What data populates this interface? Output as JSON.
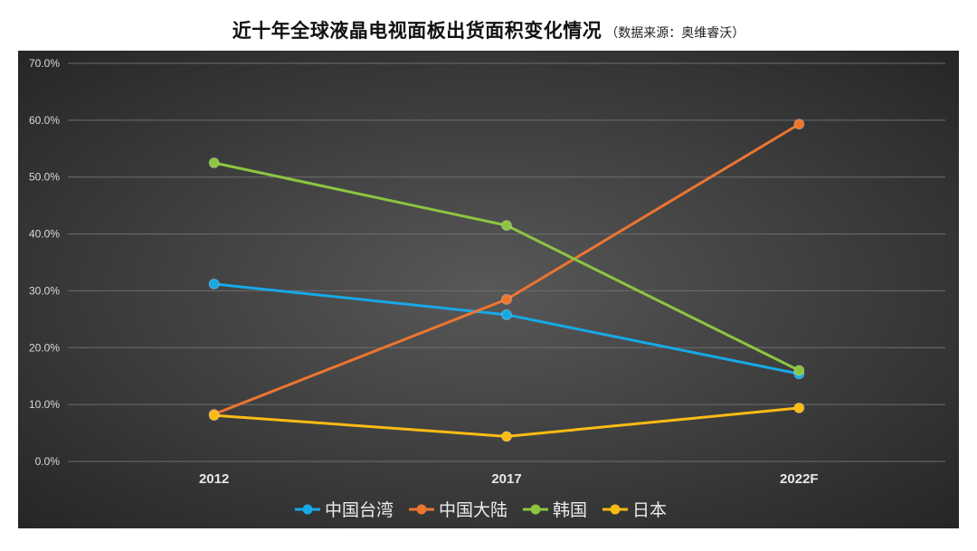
{
  "chart_data": {
    "type": "line",
    "title": "近十年全球液晶电视面板出货面积变化情况",
    "subtitle": "（数据来源：奥维睿沃）",
    "categories": [
      "2012",
      "2017",
      "2022F"
    ],
    "ylim": [
      0,
      70
    ],
    "yticks": [
      "0.0%",
      "10.0%",
      "20.0%",
      "30.0%",
      "40.0%",
      "50.0%",
      "60.0%",
      "70.0%"
    ],
    "ytick_values": [
      0,
      10,
      20,
      30,
      40,
      50,
      60,
      70
    ],
    "grid": true,
    "legend_position": "bottom",
    "series": [
      {
        "name": "中国台湾",
        "color": "#17a9e6",
        "values": [
          31.2,
          25.8,
          15.4
        ]
      },
      {
        "name": "中国大陆",
        "color": "#ed7530",
        "values": [
          8.3,
          28.5,
          59.3
        ]
      },
      {
        "name": "韩国",
        "color": "#8cc641",
        "values": [
          52.5,
          41.5,
          16.0
        ]
      },
      {
        "name": "日本",
        "color": "#fcbb13",
        "values": [
          8.1,
          4.4,
          9.4
        ]
      }
    ]
  }
}
